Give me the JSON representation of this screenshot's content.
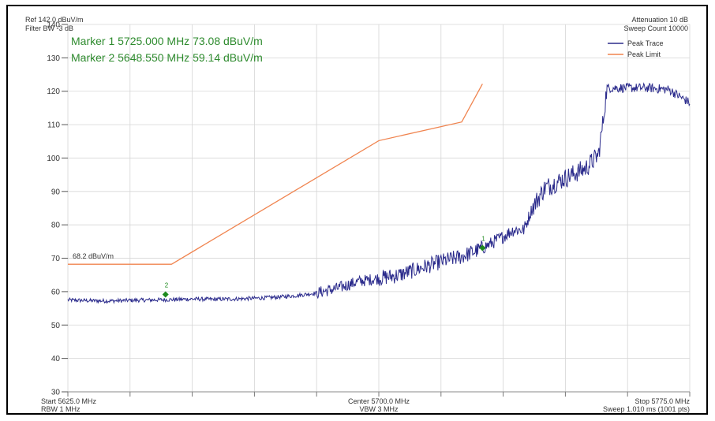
{
  "header": {
    "ref_level": "Ref 142.0 dBuV/m",
    "filter_bw": "Filter BW -3 dB",
    "attenuation": "Attenuation 10 dB",
    "sweep_count": "Sweep Count 10000"
  },
  "markers": [
    {
      "label": "1",
      "readout": "Marker 1 5725.000 MHz 73.08 dBuV/m",
      "x": 5725.0,
      "y": 73.08
    },
    {
      "label": "2",
      "readout": "Marker 2 5648.550 MHz 59.14 dBuV/m",
      "x": 5648.55,
      "y": 59.14
    }
  ],
  "footer": {
    "start": "Start 5625.0 MHz",
    "rbw": "RBW 1 MHz",
    "center": "Center 5700.0 MHz",
    "vbw": "VBW 3 MHz",
    "stop": "Stop 5775.0 MHz",
    "sweep": "Sweep 1.010 ms (1001 pts)"
  },
  "colors": {
    "trace": "#2b2b8c",
    "limit": "#f0844f",
    "marker": "#1e8a1e",
    "grid": "#d6d6d6"
  },
  "chart_data": {
    "type": "line",
    "xlim": [
      5625,
      5775
    ],
    "ylim": [
      30,
      140
    ],
    "yticks": [
      30,
      40,
      50,
      60,
      70,
      80,
      90,
      100,
      110,
      120,
      130,
      140
    ],
    "x_divisions": 10,
    "limit_label": "68.2 dBuV/m",
    "series": [
      {
        "name": "Peak Trace",
        "points": [
          [
            5625,
            57.5
          ],
          [
            5630,
            57.3
          ],
          [
            5635,
            57.2
          ],
          [
            5640,
            57.4
          ],
          [
            5645,
            57.5
          ],
          [
            5650,
            57.6
          ],
          [
            5655,
            57.8
          ],
          [
            5660,
            57.7
          ],
          [
            5665,
            57.8
          ],
          [
            5670,
            58.0
          ],
          [
            5675,
            58.3
          ],
          [
            5680,
            58.8
          ],
          [
            5685,
            59.6
          ],
          [
            5690,
            61.0
          ],
          [
            5695,
            63.0
          ],
          [
            5700,
            64.0
          ],
          [
            5705,
            65.0
          ],
          [
            5710,
            67.0
          ],
          [
            5715,
            69.0
          ],
          [
            5720,
            70.5
          ],
          [
            5725,
            73.0
          ],
          [
            5730,
            76.5
          ],
          [
            5732.5,
            78.5
          ],
          [
            5735,
            78.5
          ],
          [
            5737,
            85.0
          ],
          [
            5740,
            91.0
          ],
          [
            5745,
            94.0
          ],
          [
            5750,
            97.0
          ],
          [
            5753,
            101.0
          ],
          [
            5754,
            110.0
          ],
          [
            5755,
            121.0
          ],
          [
            5760,
            121.0
          ],
          [
            5765,
            121.0
          ],
          [
            5770,
            120.5
          ],
          [
            5775,
            116.5
          ]
        ]
      },
      {
        "name": "Peak Limit",
        "points": [
          [
            5625,
            68.2
          ],
          [
            5650,
            68.2
          ],
          [
            5700,
            105.2
          ],
          [
            5720,
            110.8
          ],
          [
            5725,
            122.2
          ]
        ]
      }
    ]
  }
}
